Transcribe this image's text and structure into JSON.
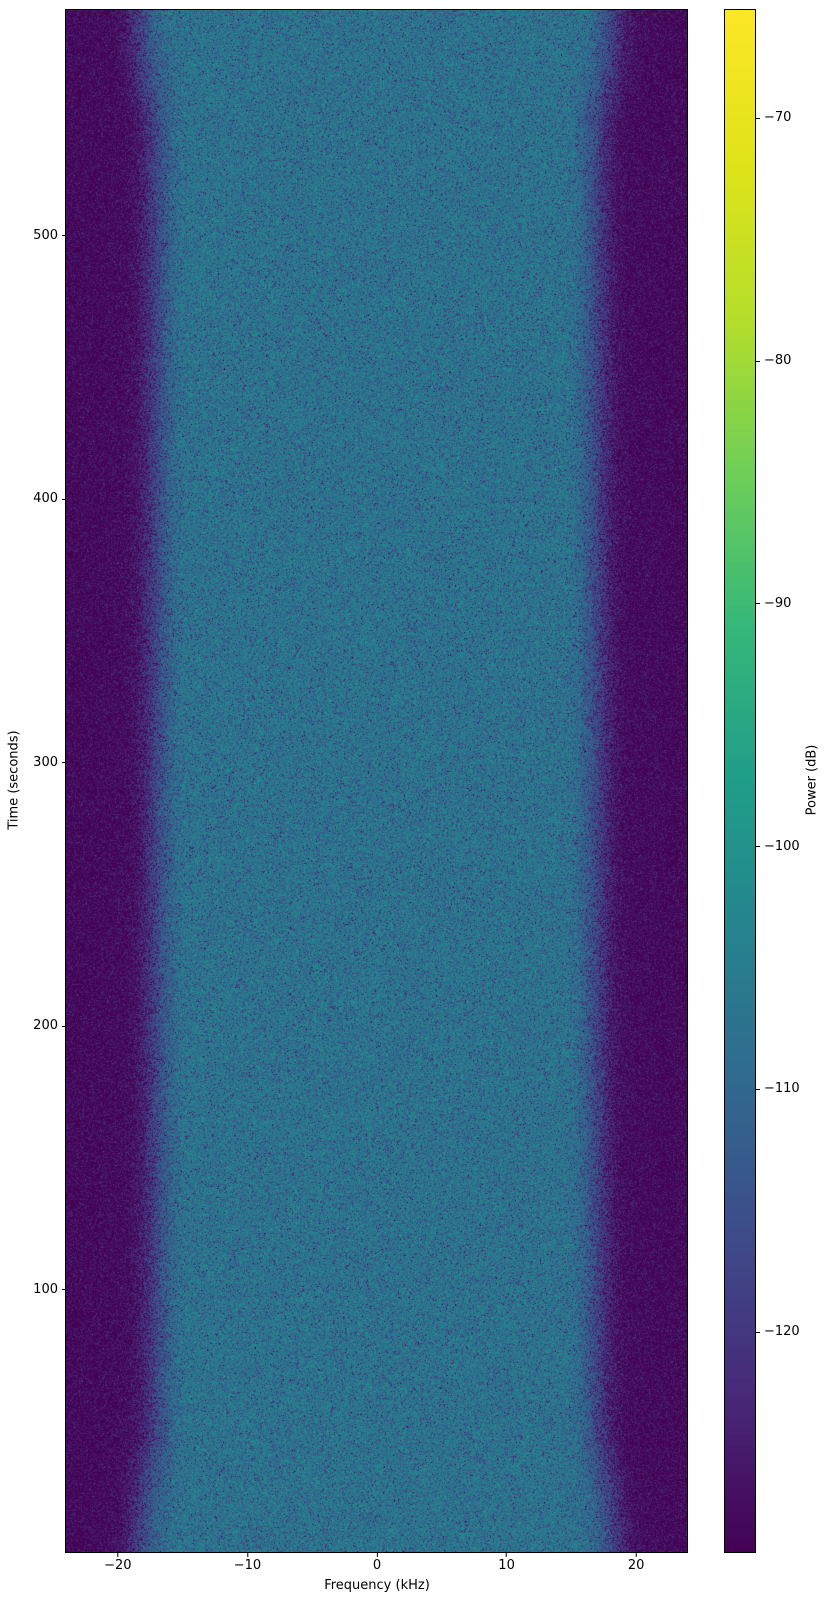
{
  "figure": {
    "background_color": "#ffffff",
    "kind": "spectrogram waterfall plot"
  },
  "axes": {
    "x": {
      "label": "Frequency (kHz)",
      "tick_labels": [
        "−20",
        "−10",
        "0",
        "10",
        "20"
      ]
    },
    "y": {
      "label": "Time (seconds)",
      "tick_labels": [
        "500",
        "400",
        "300",
        "200",
        "100"
      ]
    }
  },
  "colorbar": {
    "label": "Power (dB)",
    "tick_labels": [
      "−70",
      "−80",
      "−90",
      "−100",
      "−110",
      "−120"
    ]
  },
  "chart_data": {
    "type": "heatmap",
    "title": "",
    "xlabel": "Frequency (kHz)",
    "ylabel": "Time (seconds)",
    "colorbar_label": "Power (dB)",
    "xlim": [
      -24,
      24
    ],
    "ylim": [
      0,
      586
    ],
    "x_ticks": [
      -20,
      -10,
      0,
      10,
      20
    ],
    "y_ticks": [
      100,
      200,
      300,
      400,
      500
    ],
    "colorbar_ticks": [
      -70,
      -80,
      -90,
      -100,
      -110,
      -120
    ],
    "grid": false,
    "legend": "none (colorbar on right)",
    "color_scale": {
      "colormap": "viridis",
      "vmin": -129.1,
      "vmax": -65.5,
      "viridis_stops": [
        [
          0.0,
          "#440154"
        ],
        [
          0.1,
          "#482878"
        ],
        [
          0.2,
          "#3e4a89"
        ],
        [
          0.3,
          "#31688e"
        ],
        [
          0.4,
          "#26828e"
        ],
        [
          0.5,
          "#1f9e89"
        ],
        [
          0.6,
          "#35b779"
        ],
        [
          0.7,
          "#6ece58"
        ],
        [
          0.8,
          "#b5de2b"
        ],
        [
          0.9,
          "#dfe318"
        ],
        [
          1.0,
          "#fde725"
        ]
      ]
    },
    "power_profile": {
      "description": "Band-limited noise, uniform over time 0-586 s: flat passband near -106 dB for |f| <= ~14.5 kHz, cosine rolloff between 14.5 and 21.5 kHz, noise floor ~ -127 dB beyond +/-21.5 kHz; exponential (chi-squared) speckle noise per pixel; passband appears ~1.2 kHz wider at the extreme top and bottom rows",
      "passband_db": -105.5,
      "passband_edge_khz": 14.5,
      "stopband_start_khz": 21.5,
      "taper_depth_db": 35,
      "noise_floor_db": -127.3,
      "edge_widen_khz": 1.2,
      "edge_widen_rows": 110,
      "speckle": "exponential"
    }
  }
}
